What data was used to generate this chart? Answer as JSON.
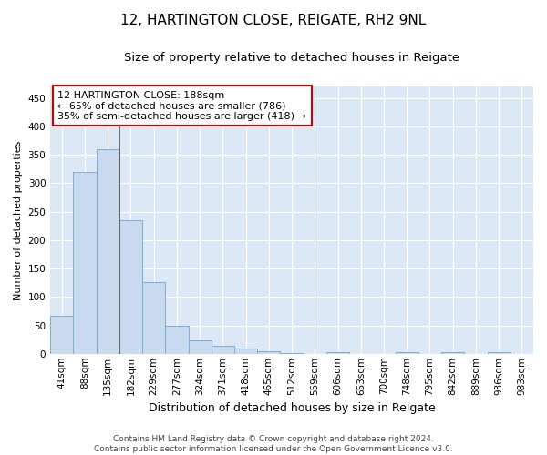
{
  "title": "12, HARTINGTON CLOSE, REIGATE, RH2 9NL",
  "subtitle": "Size of property relative to detached houses in Reigate",
  "xlabel": "Distribution of detached houses by size in Reigate",
  "ylabel": "Number of detached properties",
  "bar_labels": [
    "41sqm",
    "88sqm",
    "135sqm",
    "182sqm",
    "229sqm",
    "277sqm",
    "324sqm",
    "371sqm",
    "418sqm",
    "465sqm",
    "512sqm",
    "559sqm",
    "606sqm",
    "653sqm",
    "700sqm",
    "748sqm",
    "795sqm",
    "842sqm",
    "889sqm",
    "936sqm",
    "983sqm"
  ],
  "bar_heights": [
    67,
    320,
    360,
    235,
    126,
    50,
    24,
    14,
    9,
    5,
    2,
    0,
    3,
    0,
    0,
    3,
    0,
    3,
    0,
    3,
    0
  ],
  "bar_color": "#c9d9ee",
  "bar_edge_color": "#7aadd4",
  "ylim": [
    0,
    470
  ],
  "yticks": [
    0,
    50,
    100,
    150,
    200,
    250,
    300,
    350,
    400,
    450
  ],
  "vline_x": 2.5,
  "vline_color": "#555555",
  "annotation_text_line1": "12 HARTINGTON CLOSE: 188sqm",
  "annotation_text_line2": "← 65% of detached houses are smaller (786)",
  "annotation_text_line3": "35% of semi-detached houses are larger (418) →",
  "annotation_box_color": "#ffffff",
  "annotation_border_color": "#cc0000",
  "footer_line1": "Contains HM Land Registry data © Crown copyright and database right 2024.",
  "footer_line2": "Contains public sector information licensed under the Open Government Licence v3.0.",
  "fig_bg_color": "#ffffff",
  "plot_bg_color": "#dce8f5",
  "grid_color": "#ffffff",
  "title_fontsize": 11,
  "subtitle_fontsize": 9.5,
  "ylabel_fontsize": 8,
  "xlabel_fontsize": 9,
  "tick_fontsize": 7.5,
  "footer_fontsize": 6.5
}
